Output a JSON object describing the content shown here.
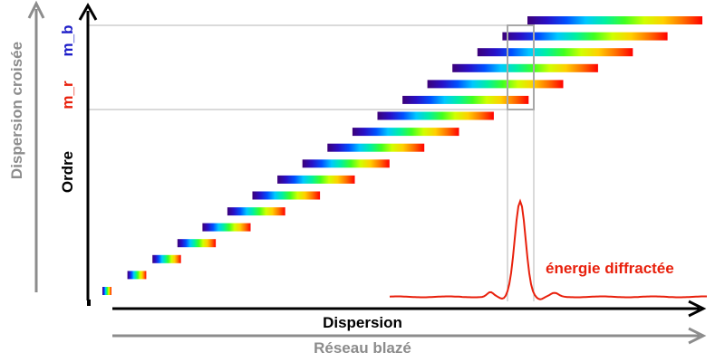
{
  "labels": {
    "cross_dispersion": "Dispersion croisée",
    "order": "Ordre",
    "m_r": "m_r",
    "m_b": "m_b",
    "dispersion": "Dispersion",
    "blazed_grating": "Réseau blazé",
    "diffracted_energy": "énergie diffractée"
  },
  "colors": {
    "grey": "#8c8c8c",
    "black": "#000000",
    "red": "#e8200c",
    "blue": "#1e1ec8",
    "guide": "#b4b4b4"
  },
  "spectrum_stops": [
    "#3c0078",
    "#2810c8",
    "#0050ff",
    "#00c8ff",
    "#00f0a0",
    "#40ff20",
    "#d0ff00",
    "#ffd000",
    "#ff7000",
    "#ff0000"
  ]
}
